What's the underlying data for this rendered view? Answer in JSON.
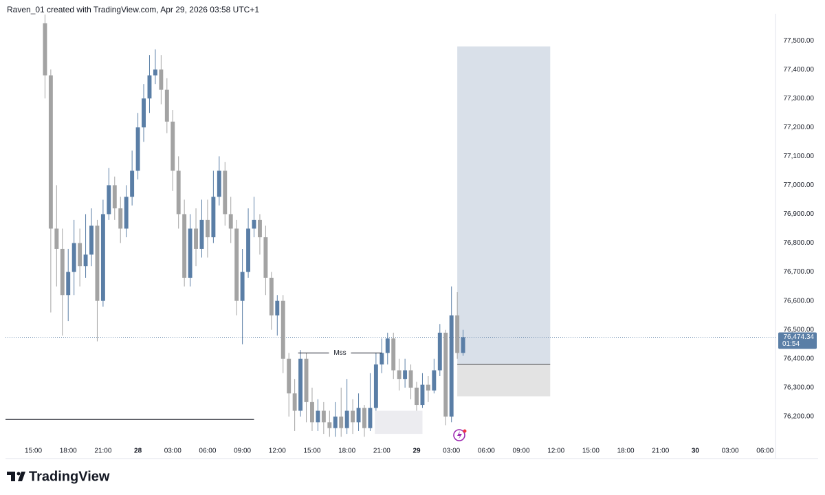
{
  "chart_data": {
    "type": "candlestick",
    "header": "Raven_01 created with TradingView.com, Apr 29, 2026 03:58 UTC+1",
    "logo": "TradingView",
    "up_color": "#5a7ea6",
    "down_color": "#a3a3a3",
    "x": [
      1.0,
      1.5,
      2.0,
      2.5,
      3.0,
      3.5,
      4.0,
      4.5,
      5.0,
      5.5,
      6.0,
      6.5,
      7.0,
      7.5,
      8.0,
      8.5,
      9.0,
      9.5,
      10.0,
      10.5,
      11.0,
      11.5,
      12.0,
      12.5,
      13.0,
      13.5,
      14.0,
      14.5,
      15.0,
      15.5,
      16.0,
      16.5,
      17.0,
      17.5,
      18.0,
      18.5,
      19.0,
      19.5,
      20.0,
      20.5,
      21.0,
      21.5,
      22.0,
      22.5,
      23.0,
      23.5,
      24.0,
      24.5,
      25.0,
      25.5,
      26.0,
      26.5,
      27.0,
      27.5,
      28.0,
      28.5,
      29.0,
      29.5,
      30.0,
      30.5,
      31.0,
      31.5,
      32.0,
      32.5,
      33.0,
      33.5,
      34.0,
      34.5,
      35.0,
      35.5,
      36.0,
      36.5,
      37.0
    ],
    "open": [
      77560,
      77380,
      76850,
      76780,
      76620,
      76700,
      76800,
      76720,
      76760,
      76860,
      76600,
      76900,
      77000,
      76920,
      76850,
      76960,
      77050,
      77200,
      77300,
      77380,
      77400,
      77330,
      77220,
      77050,
      76900,
      76680,
      76850,
      76780,
      76880,
      76820,
      76960,
      77050,
      76900,
      76850,
      76600,
      76700,
      76850,
      76880,
      76820,
      76680,
      76550,
      76600,
      76400,
      76280,
      76220,
      76400,
      76250,
      76180,
      76220,
      76180,
      76160,
      76200,
      76160,
      76220,
      76180,
      76230,
      76160,
      76230,
      76380,
      76420,
      76470,
      76360,
      76330,
      76360,
      76300,
      76240,
      76310,
      76290,
      76360,
      76490,
      76200,
      76550,
      76420
    ],
    "high": [
      77590,
      77400,
      77000,
      76850,
      76780,
      76880,
      76850,
      76900,
      76920,
      76880,
      76950,
      77060,
      77030,
      76960,
      77000,
      77120,
      77250,
      77350,
      77450,
      77470,
      77450,
      77370,
      77260,
      77100,
      76950,
      76900,
      76920,
      76950,
      76950,
      77050,
      77100,
      77080,
      76960,
      76880,
      76780,
      76920,
      76960,
      76900,
      76860,
      76700,
      76620,
      76620,
      76420,
      76330,
      76430,
      76420,
      76300,
      76260,
      76250,
      76220,
      76250,
      76300,
      76330,
      76260,
      76280,
      76240,
      76350,
      76420,
      76470,
      76490,
      76490,
      76400,
      76400,
      76380,
      76320,
      76350,
      76340,
      76400,
      76520,
      76500,
      76650,
      76630,
      76500
    ],
    "low": [
      77300,
      76560,
      76650,
      76480,
      76530,
      76620,
      76650,
      76680,
      76720,
      76460,
      76580,
      76880,
      76880,
      76800,
      76820,
      76930,
      77020,
      77150,
      77250,
      77350,
      77280,
      77180,
      76980,
      76850,
      76650,
      76650,
      76720,
      76750,
      76750,
      76800,
      76930,
      76860,
      76800,
      76550,
      76450,
      76680,
      76820,
      76760,
      76620,
      76500,
      76480,
      76350,
      76200,
      76150,
      76200,
      76180,
      76150,
      76150,
      76140,
      76130,
      76130,
      76130,
      76140,
      76140,
      76150,
      76130,
      76150,
      76220,
      76350,
      76380,
      76330,
      76290,
      76300,
      76260,
      76220,
      76230,
      76250,
      76280,
      76340,
      76170,
      76180,
      76400,
      76410
    ],
    "close": [
      77380,
      76850,
      76780,
      76620,
      76700,
      76800,
      76720,
      76760,
      76860,
      76600,
      76900,
      77000,
      76920,
      76850,
      76960,
      77050,
      77200,
      77300,
      77380,
      77400,
      77330,
      77220,
      77050,
      76900,
      76680,
      76850,
      76780,
      76880,
      76820,
      76960,
      77050,
      76900,
      76850,
      76600,
      76700,
      76850,
      76880,
      76820,
      76680,
      76550,
      76600,
      76400,
      76280,
      76220,
      76400,
      76250,
      76180,
      76220,
      76180,
      76160,
      76200,
      76160,
      76220,
      76180,
      76230,
      76160,
      76230,
      76380,
      76420,
      76470,
      76360,
      76330,
      76360,
      76300,
      76240,
      76310,
      76290,
      76360,
      76490,
      76200,
      76550,
      76420,
      76474.34
    ],
    "xlim": [
      -2.4,
      63.9
    ],
    "xticks": [
      {
        "value": 0,
        "label": "15:00"
      },
      {
        "value": 3,
        "label": "18:00"
      },
      {
        "value": 6,
        "label": "21:00"
      },
      {
        "value": 9,
        "label": "28"
      },
      {
        "value": 12,
        "label": "03:00"
      },
      {
        "value": 15,
        "label": "06:00"
      },
      {
        "value": 18,
        "label": "09:00"
      },
      {
        "value": 21,
        "label": "12:00"
      },
      {
        "value": 24,
        "label": "15:00"
      },
      {
        "value": 27,
        "label": "18:00"
      },
      {
        "value": 30,
        "label": "21:00"
      },
      {
        "value": 33,
        "label": "29"
      },
      {
        "value": 36,
        "label": "03:00"
      },
      {
        "value": 39,
        "label": "06:00"
      },
      {
        "value": 42,
        "label": "09:00"
      },
      {
        "value": 45,
        "label": "12:00"
      },
      {
        "value": 48,
        "label": "15:00"
      },
      {
        "value": 51,
        "label": "18:00"
      },
      {
        "value": 54,
        "label": "21:00"
      },
      {
        "value": 57,
        "label": "30"
      },
      {
        "value": 60,
        "label": "03:00"
      },
      {
        "value": 63,
        "label": "06:00"
      }
    ],
    "ylim": [
      76107,
      77593
    ],
    "yticks": [
      {
        "value": 76200,
        "label": "76,200.00"
      },
      {
        "value": 76300,
        "label": "76,300.00"
      },
      {
        "value": 76400,
        "label": "76,400.00"
      },
      {
        "value": 76500,
        "label": "76,500.00"
      },
      {
        "value": 76600,
        "label": "76,600.00"
      },
      {
        "value": 76700,
        "label": "76,700.00"
      },
      {
        "value": 76800,
        "label": "76,800.00"
      },
      {
        "value": 76900,
        "label": "76,900.00"
      },
      {
        "value": 77000,
        "label": "77,000.00"
      },
      {
        "value": 77100,
        "label": "77,100.00"
      },
      {
        "value": 77200,
        "label": "77,200.00"
      },
      {
        "value": 77300,
        "label": "77,300.00"
      },
      {
        "value": 77400,
        "label": "77,400.00"
      },
      {
        "value": 77500,
        "label": "77,500.00"
      }
    ],
    "last_price": 76474.34,
    "last_price_label": "76,474.34",
    "countdown": "01:54",
    "annotations": {
      "mss": {
        "label": "Mss",
        "price": 76420,
        "x": [
          22.8,
          30.0
        ]
      },
      "level": {
        "price": 76190,
        "x": [
          -2.4,
          19.0
        ]
      },
      "zone": {
        "x": [
          29.4,
          33.5
        ],
        "y": [
          76140,
          76220
        ]
      },
      "position": {
        "x": [
          36.5,
          44.5
        ],
        "target": 77480,
        "entry": 76380,
        "stop": 76270
      }
    }
  }
}
